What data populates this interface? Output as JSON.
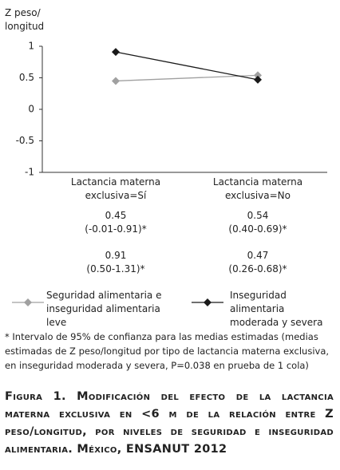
{
  "chart_data": {
    "type": "line",
    "y_label": "Z peso/ longitud",
    "categories": [
      "Lactancia materna exclusiva=Sí",
      "Lactancia materna exclusiva=No"
    ],
    "series": [
      {
        "name": "Seguridad alimentaria e inseguridad alimentaria leve",
        "color": "#a0a0a0",
        "marker": "diamond",
        "values": [
          0.45,
          0.54
        ],
        "intervals": [
          "(-0.01-0.91)*",
          "(0.40-0.69)*"
        ]
      },
      {
        "name": "Inseguridad alimentaria moderada y severa",
        "color": "#1a1a1a",
        "marker": "diamond",
        "values": [
          0.91,
          0.47
        ],
        "intervals": [
          "(0.50-1.31)*",
          "(0.26-0.68)*"
        ]
      }
    ],
    "ylim": [
      -1,
      1
    ],
    "yticks": [
      1,
      0.5,
      0,
      -0.5,
      -1
    ],
    "grid": false,
    "footnote": "* Intervalo de 95% de confianza para las medias estimadas (medias estimadas de Z peso/longitud por tipo de lactancia materna exclusiva, en inseguridad moderada y severa, P=0.038 en prueba de 1 cola)",
    "caption": "Figura 1. Modificación del efecto de la lactancia materna exclusiva en <6 m de la relación entre Z peso/longitud, por niveles de seguridad e inseguridad alimentaria. México, ENSANUT 2012"
  }
}
